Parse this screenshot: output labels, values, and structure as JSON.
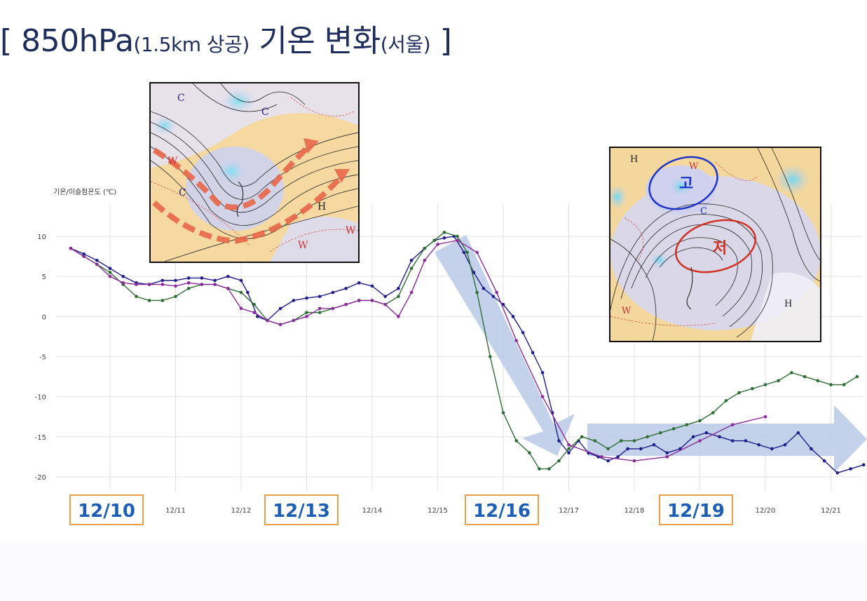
{
  "title": {
    "main": "[ 850hPa",
    "paren": "(1.5km 상공)",
    "main2": "기온 변화",
    "paren2": "(서울)",
    "close": "]"
  },
  "callouts": [
    "12/10",
    "12/13",
    "12/16",
    "12/19"
  ],
  "map_left": {
    "labels": [
      "C",
      "C",
      "W",
      "W",
      "H",
      "W",
      "C"
    ]
  },
  "map_right": {
    "labels": [
      "H",
      "고",
      "저",
      "W",
      "W",
      "H",
      "C"
    ]
  },
  "colors": {
    "navy": "#1f1d8a",
    "green": "#2e6e34",
    "purple": "#8a2b9a",
    "arrow": "#b8c9e6",
    "callout_border": "#e8a04a",
    "callout_text": "#1d5fb5"
  },
  "chart_data": {
    "type": "line",
    "ylabel": "기온/이슬점온도 (℃)",
    "ylim": [
      -22,
      12
    ],
    "yticks": [
      10,
      5,
      0,
      -5,
      -10,
      -15,
      -20
    ],
    "xlim": [
      9.3,
      21.6
    ],
    "xticks": [
      "12/11",
      "12/12",
      "12/14",
      "12/15",
      "12/17",
      "12/18",
      "12/20",
      "12/21"
    ],
    "xtick_values": [
      11,
      12,
      14,
      15,
      17,
      18,
      20,
      21
    ],
    "series": [
      {
        "name": "",
        "color": "#1f1d8a",
        "x": [
          9.4,
          9.6,
          9.8,
          10.0,
          10.2,
          10.4,
          10.6,
          10.8,
          11.0,
          11.2,
          11.4,
          11.6,
          11.8,
          12.0,
          12.1,
          12.25,
          12.4,
          12.6,
          12.8,
          13.0,
          13.2,
          13.4,
          13.6,
          13.8,
          14.0,
          14.2,
          14.4,
          14.6,
          14.8,
          14.95,
          15.1,
          15.25,
          15.4,
          15.55,
          15.7,
          15.85,
          16.0,
          16.15,
          16.3,
          16.45,
          16.6,
          16.75,
          16.85,
          17.0,
          17.15,
          17.3,
          17.45,
          17.6,
          17.75,
          17.9,
          18.1,
          18.3,
          18.5,
          18.7,
          18.9,
          19.1,
          19.3,
          19.5,
          19.7,
          19.9,
          20.1,
          20.3,
          20.5,
          20.7,
          20.9,
          21.1,
          21.3,
          21.5
        ],
        "y": [
          8.5,
          7.8,
          7.0,
          6.0,
          5.0,
          4.2,
          4.0,
          4.5,
          4.5,
          4.8,
          4.8,
          4.5,
          5.0,
          4.5,
          3.0,
          0.0,
          -0.5,
          1.0,
          2.0,
          2.3,
          2.5,
          3.0,
          3.5,
          4.2,
          3.8,
          2.5,
          3.5,
          7.0,
          8.5,
          9.5,
          9.8,
          10.0,
          8.0,
          5.5,
          3.5,
          2.5,
          1.5,
          0.0,
          -2.0,
          -4.5,
          -7.0,
          -12.0,
          -15.5,
          -17.0,
          -15.5,
          -17.0,
          -17.5,
          -18.0,
          -17.5,
          -16.5,
          -16.5,
          -16.0,
          -17.0,
          -16.5,
          -15.0,
          -14.5,
          -15.0,
          -15.5,
          -15.5,
          -16.0,
          -16.5,
          -16.0,
          -14.5,
          -16.5,
          -18.0,
          -19.5,
          -19.0,
          -18.5
        ]
      },
      {
        "name": "",
        "color": "#2e6e34",
        "x": [
          9.4,
          9.6,
          9.8,
          10.0,
          10.2,
          10.4,
          10.6,
          10.8,
          11.0,
          11.2,
          11.4,
          11.6,
          11.8,
          12.0,
          12.2,
          12.4,
          12.6,
          12.8,
          13.0,
          13.2,
          13.4,
          13.6,
          13.8,
          14.0,
          14.2,
          14.4,
          14.6,
          14.8,
          14.95,
          15.1,
          15.3,
          15.45,
          15.6,
          15.8,
          16.0,
          16.2,
          16.4,
          16.55,
          16.7,
          16.85,
          17.0,
          17.2,
          17.4,
          17.6,
          17.8,
          18.0,
          18.2,
          18.4,
          18.6,
          18.8,
          19.0,
          19.2,
          19.4,
          19.6,
          19.8,
          20.0,
          20.2,
          20.4,
          20.6,
          20.8,
          21.0,
          21.2,
          21.4
        ],
        "y": [
          8.5,
          7.5,
          6.5,
          5.5,
          4.0,
          2.5,
          2.0,
          2.0,
          2.5,
          3.5,
          4.0,
          4.0,
          3.5,
          3.0,
          1.5,
          -0.5,
          -1.0,
          -0.5,
          0.5,
          0.5,
          1.0,
          1.5,
          2.0,
          2.0,
          1.5,
          2.5,
          6.0,
          8.5,
          9.5,
          10.5,
          10.0,
          8.0,
          3.0,
          -5.0,
          -12.0,
          -15.5,
          -17.0,
          -19.0,
          -19.0,
          -18.0,
          -16.5,
          -15.0,
          -15.5,
          -16.5,
          -15.5,
          -15.5,
          -15.0,
          -14.5,
          -14.0,
          -13.5,
          -13.0,
          -12.0,
          -10.5,
          -9.5,
          -9.0,
          -8.5,
          -8.0,
          -7.0,
          -7.5,
          -8.0,
          -8.5,
          -8.5,
          -7.5
        ]
      },
      {
        "name": "",
        "color": "#8a2b9a",
        "x": [
          9.4,
          9.6,
          9.8,
          10.0,
          10.2,
          10.4,
          10.6,
          10.8,
          11.0,
          11.2,
          11.4,
          11.6,
          11.8,
          12.0,
          12.2,
          12.4,
          12.6,
          12.8,
          13.0,
          13.2,
          13.4,
          13.6,
          13.8,
          14.0,
          14.2,
          14.4,
          14.6,
          14.8,
          15.0,
          15.3,
          15.6,
          15.9,
          16.2,
          16.6,
          17.0,
          17.5,
          18.0,
          18.5,
          19.0,
          19.5,
          20.0
        ],
        "y": [
          8.5,
          7.5,
          6.5,
          5.0,
          4.2,
          4.0,
          4.0,
          4.0,
          3.8,
          4.2,
          4.0,
          4.0,
          3.5,
          1.0,
          0.5,
          -0.5,
          -1.0,
          -0.5,
          0.0,
          1.0,
          1.0,
          1.5,
          2.0,
          2.0,
          1.5,
          0.0,
          3.0,
          7.0,
          9.0,
          9.5,
          8.0,
          3.0,
          -3.0,
          -10.0,
          -16.0,
          -17.5,
          -18.0,
          -17.5,
          -15.5,
          -13.5,
          -12.5
        ]
      }
    ]
  }
}
